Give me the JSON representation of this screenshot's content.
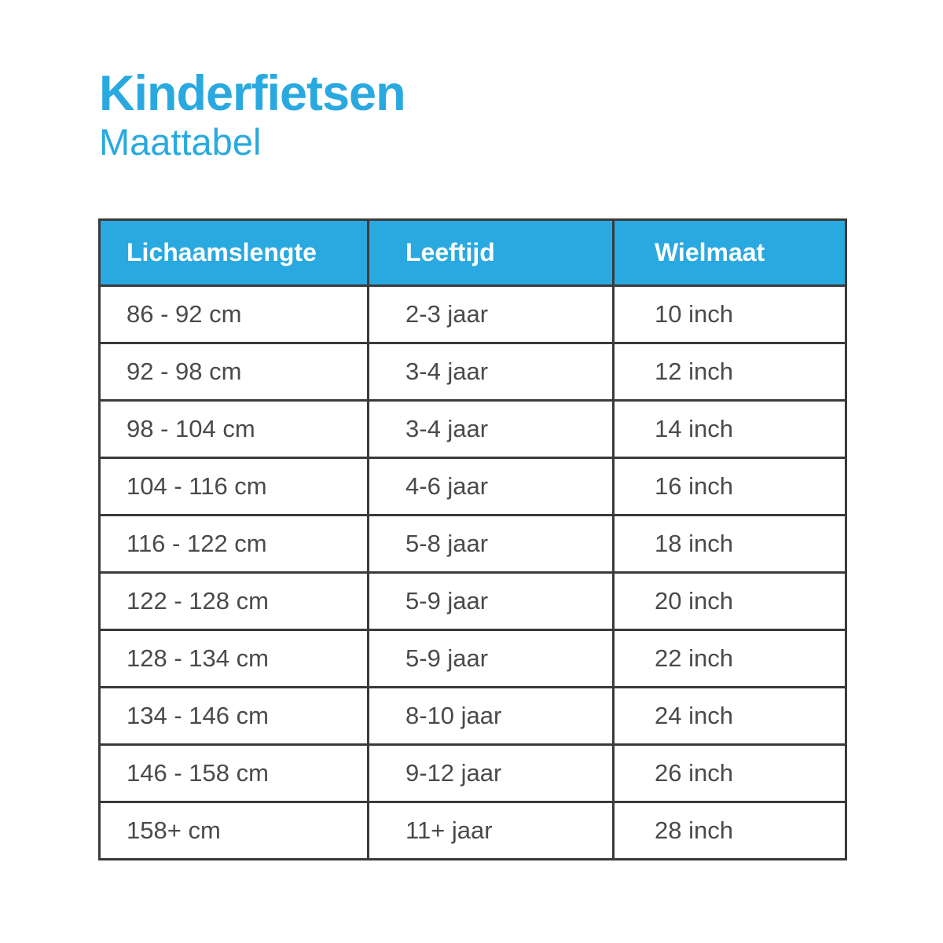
{
  "header": {
    "title": "Kinderfietsen",
    "subtitle": "Maattabel"
  },
  "colors": {
    "accent": "#29A9E0",
    "header_text": "#FFFFFF",
    "border": "#3A3A3A",
    "cell_text": "#4A4A4A",
    "page_bg": "#FFFFFF"
  },
  "table": {
    "columns": [
      "Lichaamslengte",
      "Leeftijd",
      "Wielmaat"
    ],
    "column_keys": [
      "lichaamslengte",
      "leeftijd",
      "wielmaat"
    ],
    "rows": [
      [
        "86 - 92 cm",
        "2-3 jaar",
        "10 inch"
      ],
      [
        "92 - 98 cm",
        "3-4 jaar",
        "12 inch"
      ],
      [
        "98 - 104 cm",
        "3-4 jaar",
        "14 inch"
      ],
      [
        "104 - 116 cm",
        "4-6 jaar",
        "16 inch"
      ],
      [
        "116 - 122 cm",
        "5-8 jaar",
        "18 inch"
      ],
      [
        "122 - 128 cm",
        "5-9 jaar",
        "20 inch"
      ],
      [
        "128 - 134 cm",
        "5-9 jaar",
        "22 inch"
      ],
      [
        "134 - 146 cm",
        "8-10 jaar",
        "24 inch"
      ],
      [
        "146 - 158 cm",
        "9-12 jaar",
        "26 inch"
      ],
      [
        "158+ cm",
        "11+ jaar",
        "28 inch"
      ]
    ]
  }
}
